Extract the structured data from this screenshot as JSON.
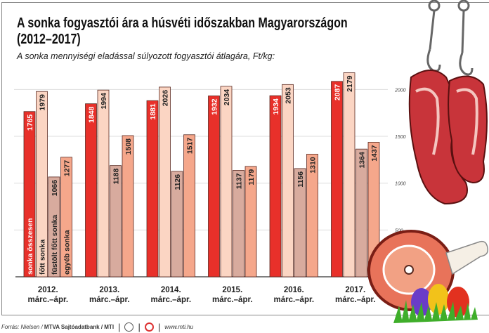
{
  "title_line1": "A sonka fogyasztói ára a húsvéti időszakban Magyarországon",
  "title_line2": "(2012–2017)",
  "subtitle": "A sonka mennyiségi eladással súlyozott fogyasztói átlagára, Ft/kg:",
  "footer": {
    "source": "Forrás: Nielsen /",
    "bank": "MTVA Sajtóadatbank / MTI",
    "url": "www.mti.hu"
  },
  "chart_data": {
    "type": "bar",
    "title": "A sonka fogyasztói ára a húsvéti időszakban Magyarországon (2012–2017)",
    "ylabel": "Ft/kg",
    "ylim": [
      0,
      2200
    ],
    "yticks": [
      500,
      1000,
      1500,
      2000
    ],
    "categories": [
      {
        "year": "2012.",
        "period": "márc.–ápr."
      },
      {
        "year": "2013.",
        "period": "márc.–ápr."
      },
      {
        "year": "2014.",
        "period": "márc.–ápr."
      },
      {
        "year": "2015.",
        "period": "márc.–ápr."
      },
      {
        "year": "2016.",
        "period": "márc.–ápr."
      },
      {
        "year": "2017.",
        "period": "márc.–ápr."
      }
    ],
    "series": [
      {
        "name": "sonka összesen",
        "color": "#e8302a",
        "values": [
          1765,
          1848,
          1881,
          1932,
          1934,
          2087
        ]
      },
      {
        "name": "főtt sonka",
        "color": "#fbd5c3",
        "values": [
          1979,
          1994,
          2026,
          2034,
          2053,
          2179
        ]
      },
      {
        "name": "füstölt főtt sonka",
        "color": "#d8ab9e",
        "values": [
          1066,
          1188,
          1126,
          1137,
          1156,
          1364
        ]
      },
      {
        "name": "egyéb sonka",
        "color": "#f5a78b",
        "values": [
          1277,
          1508,
          1517,
          1179,
          1310,
          1437
        ]
      }
    ],
    "legend": "inside first group bars",
    "grid": true
  }
}
